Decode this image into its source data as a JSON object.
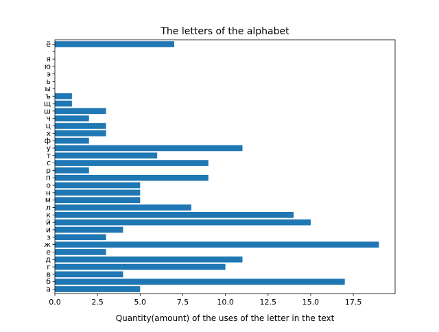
{
  "chart_data": {
    "type": "bar",
    "orientation": "horizontal",
    "title": "The letters of the alphabet",
    "xlabel": "Quantity(amount) of the uses of the letter in the text",
    "ylabel": "",
    "xlim": [
      0,
      19.95
    ],
    "xticks": [
      0,
      2.5,
      5,
      7.5,
      10,
      12.5,
      15,
      17.5
    ],
    "xtick_labels": [
      "0.0",
      "2.5",
      "5.0",
      "7.5",
      "10.0",
      "12.5",
      "15.0",
      "17.5"
    ],
    "categories": [
      "а",
      "б",
      "в",
      "г",
      "д",
      "е",
      "ж",
      "з",
      "и",
      "й",
      "к",
      "л",
      "м",
      "н",
      "о",
      "п",
      "р",
      "с",
      "т",
      "у",
      "ф",
      "х",
      "ц",
      "ч",
      "ш",
      "щ",
      "ъ",
      "ы",
      "ь",
      "э",
      "ю",
      "я",
      "",
      "ё"
    ],
    "values": [
      5,
      17,
      4,
      10,
      11,
      3,
      19,
      3,
      4,
      15,
      14,
      8,
      5,
      5,
      5,
      9,
      2,
      9,
      6,
      11,
      2,
      3,
      3,
      2,
      3,
      1,
      1,
      0,
      0,
      0,
      0,
      0,
      0,
      7
    ],
    "bar_color": "#1f77b4",
    "grid": false,
    "legend": "none"
  }
}
